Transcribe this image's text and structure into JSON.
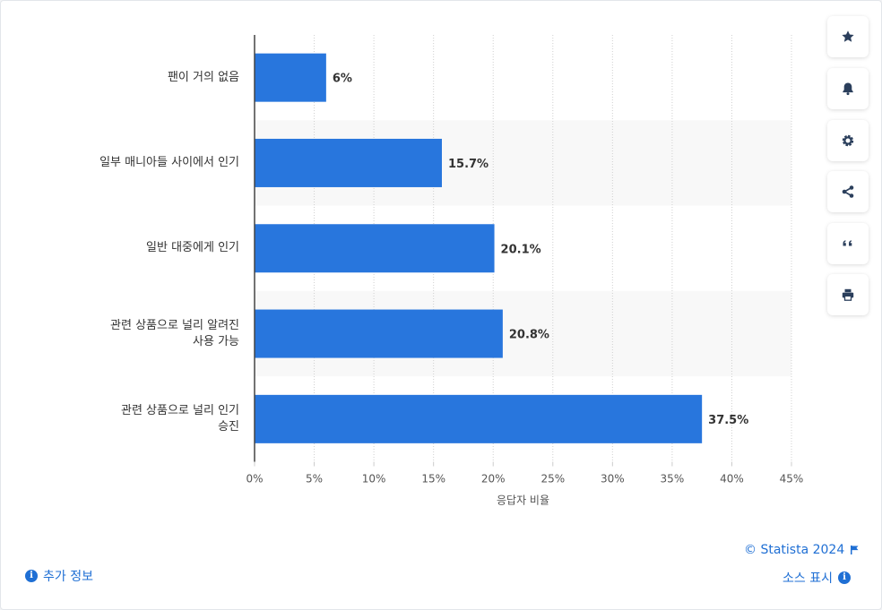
{
  "chart_data": {
    "type": "bar",
    "orientation": "horizontal",
    "categories": [
      "팬이 거의 없음",
      "일부 매니아들 사이에서 인기",
      "일반 대중에게 인기",
      "관련 상품으로 널리 알려진\n사용 가능",
      "관련 상품으로 널리 인기\n승진"
    ],
    "values": [
      6,
      15.7,
      20.1,
      20.8,
      37.5
    ],
    "value_labels": [
      "6%",
      "15.7%",
      "20.1%",
      "20.8%",
      "37.5%"
    ],
    "xlabel": "응답자 비율",
    "xlim": [
      0,
      45
    ],
    "ticks": [
      0,
      5,
      10,
      15,
      20,
      25,
      30,
      35,
      40,
      45
    ],
    "tick_labels": [
      "0%",
      "5%",
      "10%",
      "15%",
      "20%",
      "25%",
      "30%",
      "35%",
      "40%",
      "45%"
    ],
    "bar_color": "#2876dd",
    "band_color": "#f8f8f8",
    "grid": "vertical dotted"
  },
  "toolbar": {
    "buttons": [
      "star-icon",
      "bell-icon",
      "gear-icon",
      "share-icon",
      "quote-icon",
      "print-icon"
    ]
  },
  "footer": {
    "more_info": "추가 정보",
    "copyright": "© Statista 2024",
    "source": "소스 표시"
  },
  "colors": {
    "accent": "#1f6fd4",
    "icon": "#2b3f5c"
  }
}
